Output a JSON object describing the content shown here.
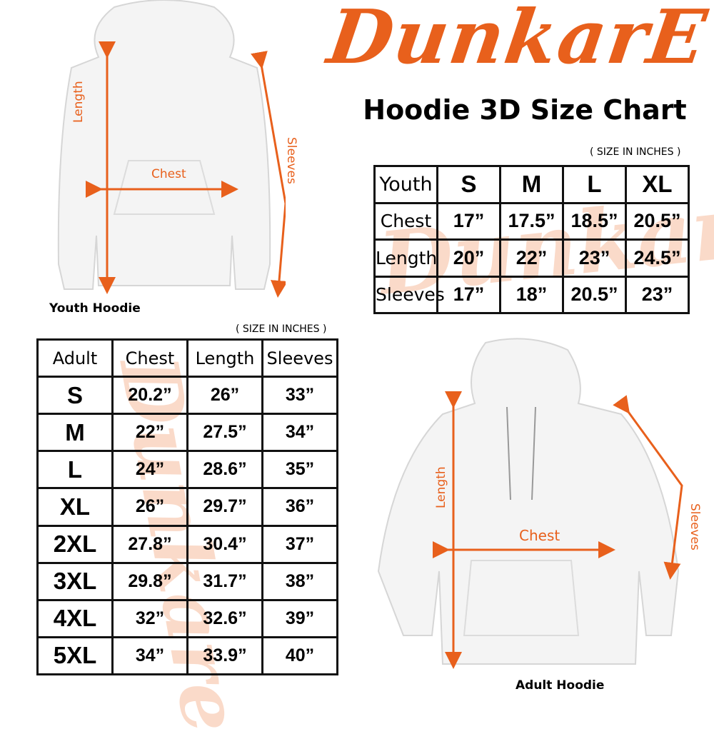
{
  "brand": "DunkarE",
  "brand_color": "#e8601c",
  "title": "Hoodie 3D Size Chart",
  "youth": {
    "caption": "Youth Hoodie",
    "unit_note": "( SIZE IN INCHES )",
    "labels": {
      "length": "Length",
      "chest": "Chest",
      "sleeves": "Sleeves"
    },
    "table": {
      "header": [
        "Youth",
        "S",
        "M",
        "L",
        "XL"
      ],
      "rows": [
        [
          "Chest",
          "17”",
          "17.5”",
          "18.5”",
          "20.5”"
        ],
        [
          "Length",
          "20”",
          "22”",
          "23”",
          "24.5”"
        ],
        [
          "Sleeves",
          "17”",
          "18”",
          "20.5”",
          "23”"
        ]
      ]
    }
  },
  "adult": {
    "caption": "Adult Hoodie",
    "unit_note": "( SIZE IN INCHES )",
    "labels": {
      "length": "Length",
      "chest": "Chest",
      "sleeves": "Sleeves"
    },
    "table": {
      "header": [
        "Adult",
        "Chest",
        "Length",
        "Sleeves"
      ],
      "rows": [
        [
          "S",
          "20.2”",
          "26”",
          "33”"
        ],
        [
          "M",
          "22”",
          "27.5”",
          "34”"
        ],
        [
          "L",
          "24”",
          "28.6”",
          "35”"
        ],
        [
          "XL",
          "26”",
          "29.7”",
          "36”"
        ],
        [
          "2XL",
          "27.8”",
          "30.4”",
          "37”"
        ],
        [
          "3XL",
          "29.8”",
          "31.7”",
          "38”"
        ],
        [
          "4XL",
          "32”",
          "32.6”",
          "39”"
        ],
        [
          "5XL",
          "34”",
          "33.9”",
          "40”"
        ]
      ]
    }
  }
}
